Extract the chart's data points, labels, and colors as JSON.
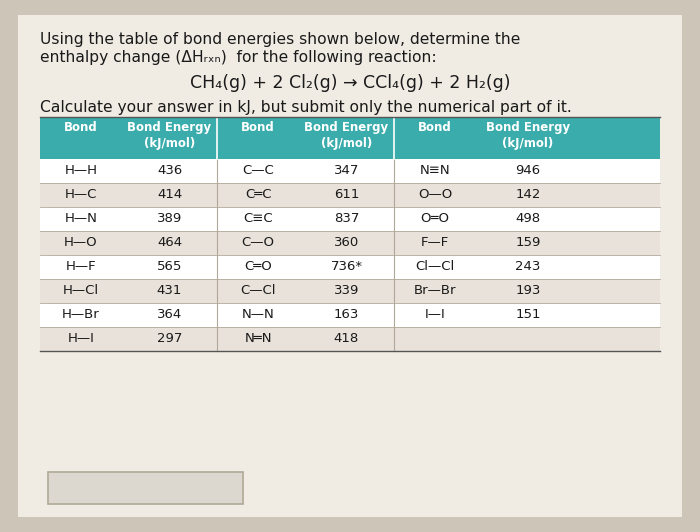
{
  "bg_color": "#cdc5b8",
  "card_color": "#f0ebe3",
  "title_line1": "Using the table of bond energies shown below, determine the",
  "title_line2": "enthalpy change (ΔHᵣₓₙ)  for the following reaction:",
  "reaction": "CH₄(g) + 2 Cl₂(g) → CCl₄(g) + 2 H₂(g)",
  "instruction": "Calculate your answer in kJ, but submit only the numerical part of it.",
  "header_bg": "#3aacac",
  "header_text_color": "#ffffff",
  "col1_bonds": [
    "H—H",
    "H—C",
    "H—N",
    "H—O",
    "H—F",
    "H—Cl",
    "H—Br",
    "H—I"
  ],
  "col1_energies": [
    "436",
    "414",
    "389",
    "464",
    "565",
    "431",
    "364",
    "297"
  ],
  "col2_bonds": [
    "C—C",
    "C═C",
    "C≡C",
    "C—O",
    "C═O",
    "C—Cl",
    "N—N",
    "N═N"
  ],
  "col2_energies": [
    "347",
    "611",
    "837",
    "360",
    "736*",
    "339",
    "163",
    "418"
  ],
  "col3_bonds": [
    "N≡N",
    "O—O",
    "O═O",
    "F—F",
    "Cl—Cl",
    "Br—Br",
    "I—I",
    ""
  ],
  "col3_energies": [
    "946",
    "142",
    "498",
    "159",
    "243",
    "193",
    "151",
    ""
  ],
  "row_colors": [
    "#ffffff",
    "#e8e2da"
  ],
  "divider_color": "#b0a898",
  "answer_box_color": "#ddd8cf",
  "answer_box_border": "#b0a898"
}
